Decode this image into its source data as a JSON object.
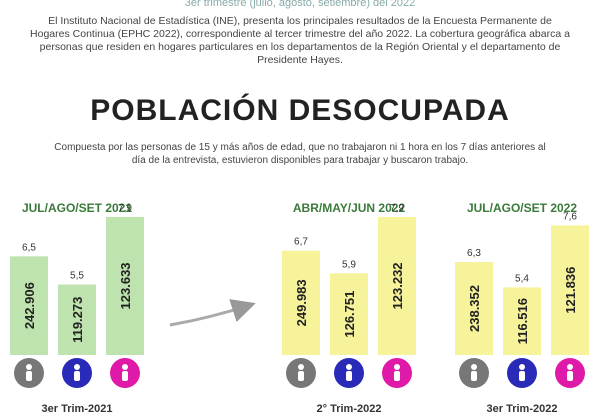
{
  "header": {
    "subtitle": "3er trimestre (julio, agosto, setiembre) del 2022",
    "intro": "El Instituto Nacional de Estadística (INE), presenta los principales resultados de la Encuesta Permanente de Hogares Continua (EPHC 2022), correspondiente al tercer trimestre del año 2022.  La cobertura geográfica abarca a personas que residen en hogares particulares en los departamentos de la Región Oriental y el departamento de Presidente Hayes.",
    "title": "POBLACIÓN DESOCUPADA",
    "description": "Compuesta por las personas de 15 y más años de edad,  que no trabajaron ni 1 hora en los 7 días anteriores al día de la entrevista, estuvieron disponibles para trabajar y buscaron trabajo."
  },
  "chart_data": [
    {
      "type": "bar",
      "title": "JUL/AGO/SET 2021",
      "xlabel": "3er Trim-2021",
      "categories": [
        null,
        null,
        null
      ],
      "values": [
        6.5,
        5.5,
        7.9
      ],
      "value_labels": [
        "6,5",
        "5,5",
        "7,9"
      ],
      "counts": [
        242906,
        119273,
        123633
      ],
      "count_labels": [
        "242.906",
        "119.273",
        "123.633"
      ],
      "color": "#bfe3ae",
      "ylim": [
        3,
        8.5
      ]
    },
    {
      "type": "bar",
      "title": "ABR/MAY/JUN 2022",
      "xlabel": "2° Trim-2022",
      "categories": [
        null,
        null,
        null
      ],
      "values": [
        6.7,
        5.9,
        7.9
      ],
      "value_labels": [
        "6,7",
        "5,9",
        "7,9"
      ],
      "counts": [
        249983,
        126751,
        123232
      ],
      "count_labels": [
        "249.983",
        "126.751",
        "123.232"
      ],
      "color": "#f6f39a",
      "ylim": [
        3,
        8.5
      ]
    },
    {
      "type": "bar",
      "title": "JUL/AGO/SET 2022",
      "xlabel": "3er Trim-2022",
      "categories": [
        null,
        null,
        null
      ],
      "values": [
        6.3,
        5.4,
        7.6
      ],
      "value_labels": [
        "6,3",
        "5,4",
        "7,6"
      ],
      "counts": [
        238352,
        116516,
        121836
      ],
      "count_labels": [
        "238.352",
        "116.516",
        "121.836"
      ],
      "color": "#f6f39a",
      "ylim": [
        3,
        8.5
      ]
    }
  ]
}
